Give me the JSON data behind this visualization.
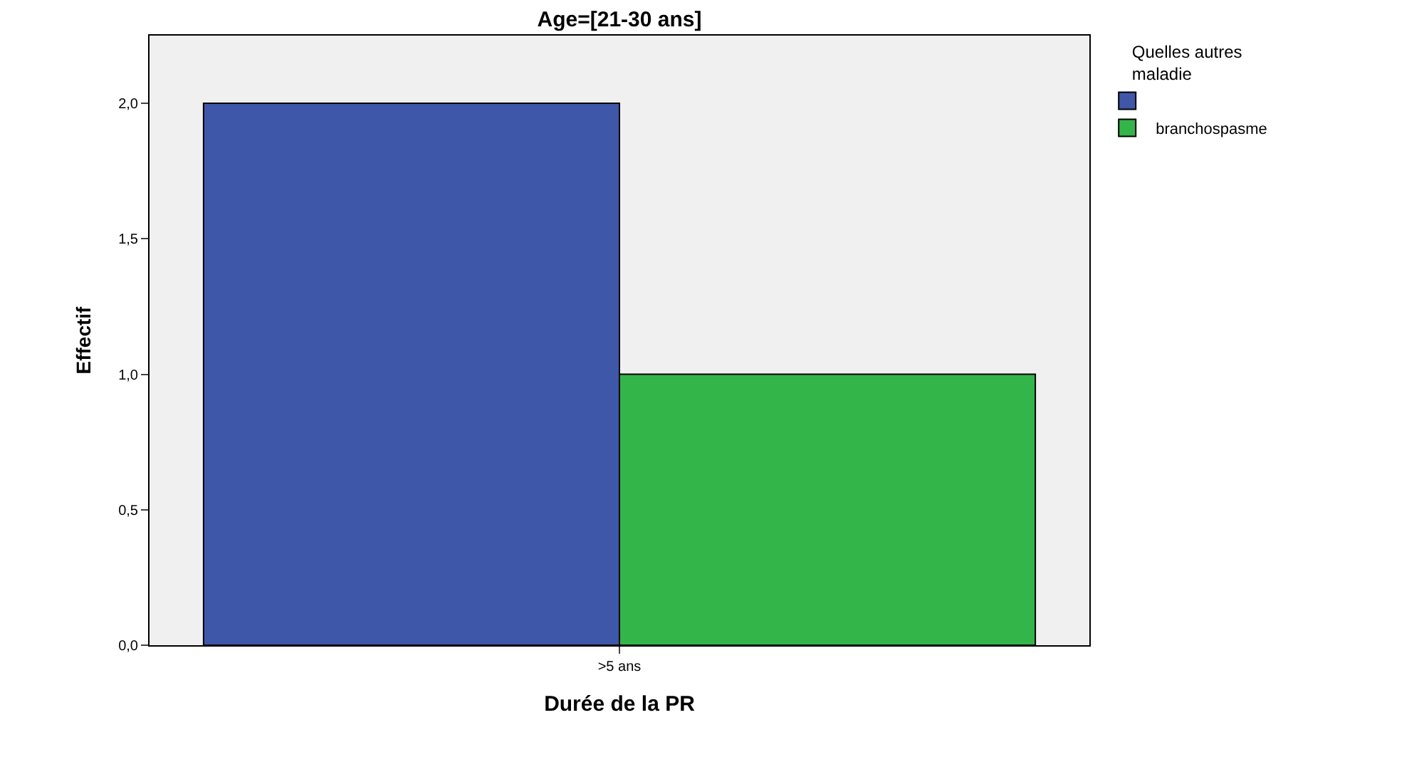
{
  "chart_data": {
    "type": "bar",
    "title": "Age=[21-30 ans]",
    "xlabel": "Durée de la PR",
    "ylabel": "Effectif",
    "legend_title": "Quelles autres maladie",
    "categories": [
      ">5 ans"
    ],
    "series": [
      {
        "color": "#3f57a8",
        "values": [
          2
        ]
      },
      {
        "name": "branchospasme",
        "color": "#33b54a",
        "values": [
          1
        ]
      }
    ],
    "ylim": [
      0,
      2.25
    ],
    "yticks": [
      {
        "value": 0,
        "label": "0,0"
      },
      {
        "value": 0.5,
        "label": "0,5"
      },
      {
        "value": 1,
        "label": "1,0"
      },
      {
        "value": 1.5,
        "label": "1,5"
      },
      {
        "value": 2,
        "label": "2,0"
      }
    ],
    "grid": false,
    "legend": "top right"
  }
}
